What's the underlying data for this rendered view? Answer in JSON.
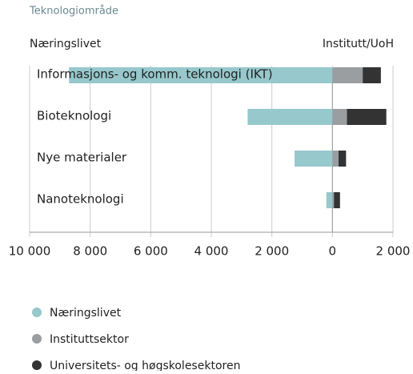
{
  "chart_data": {
    "type": "diverging-bar",
    "title": "Teknologiområde",
    "left_label": "Næringslivet",
    "right_label": "Institutt/UoH",
    "categories": [
      "Informasjons- og komm. teknologi (IKT)",
      "Bioteknologi",
      "Nye materialer",
      "Nanoteknologi"
    ],
    "series": [
      {
        "name": "Næringslivet",
        "color": "#96c8cc",
        "values": [
          -8700,
          -2800,
          -1250,
          -200
        ]
      },
      {
        "name": "Instituttsektor",
        "color": "#9a9ea1",
        "values": [
          1000,
          480,
          200,
          50
        ]
      },
      {
        "name": "Universitets- og høgskolesektoren",
        "color": "#333333",
        "values": [
          600,
          1300,
          250,
          200
        ]
      }
    ],
    "xlim": [
      -10000,
      2000
    ],
    "xticks": [
      {
        "value": -10000,
        "label": "10 000"
      },
      {
        "value": -8000,
        "label": "8 000"
      },
      {
        "value": -6000,
        "label": "6 000"
      },
      {
        "value": -4000,
        "label": "4 000"
      },
      {
        "value": -2000,
        "label": "2 000"
      },
      0,
      {
        "value": 2000,
        "label": "2 000"
      }
    ],
    "grid": true
  }
}
